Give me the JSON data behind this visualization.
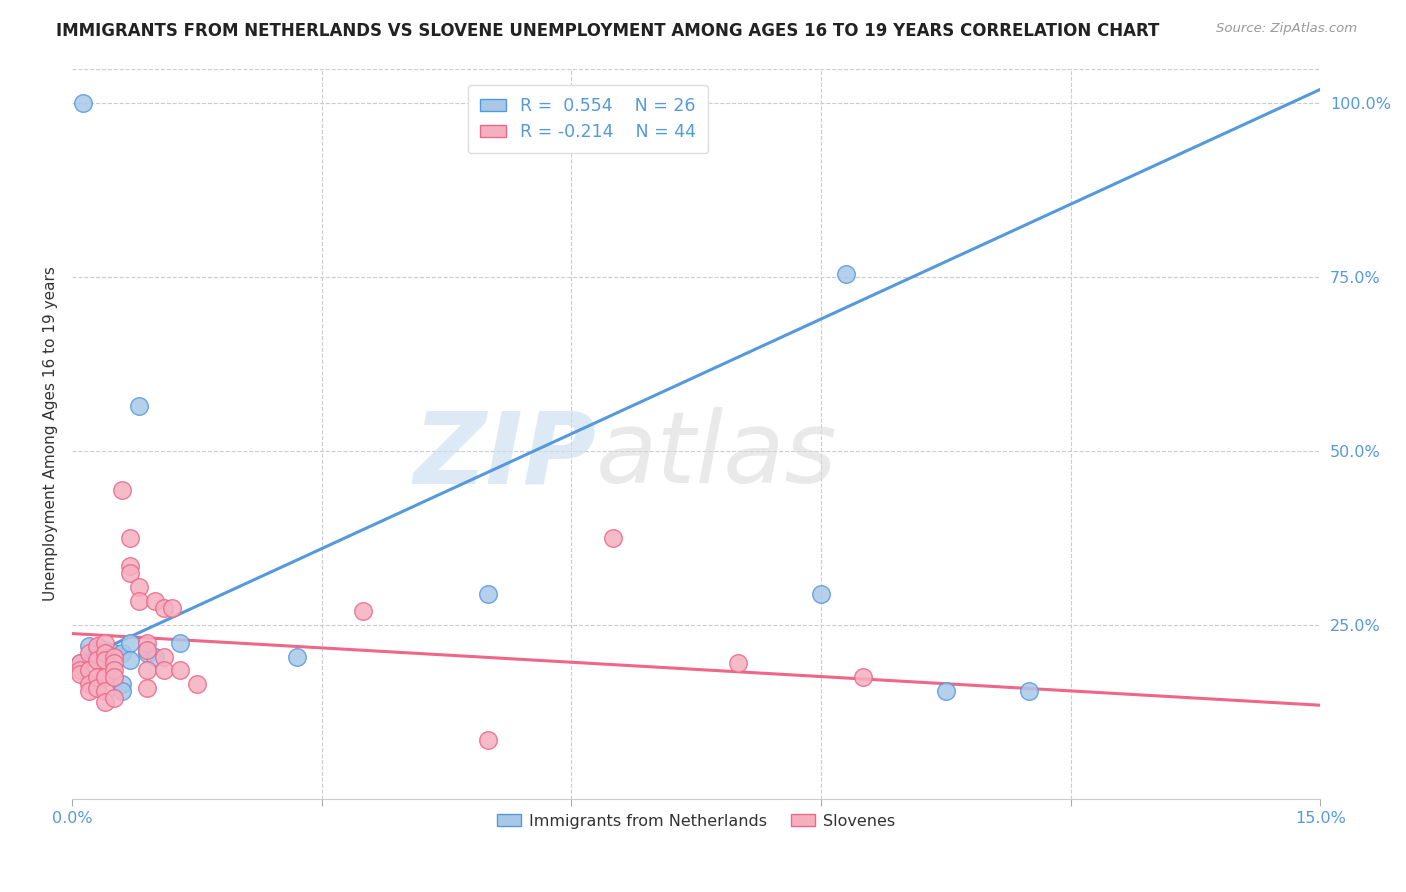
{
  "title": "IMMIGRANTS FROM NETHERLANDS VS SLOVENE UNEMPLOYMENT AMONG AGES 16 TO 19 YEARS CORRELATION CHART",
  "source": "Source: ZipAtlas.com",
  "ylabel": "Unemployment Among Ages 16 to 19 years",
  "x_min": 0.0,
  "x_max": 0.15,
  "y_min": 0.0,
  "y_max": 1.05,
  "y_ticks_right": [
    0.25,
    0.5,
    0.75,
    1.0
  ],
  "y_tick_labels_right": [
    "25.0%",
    "50.0%",
    "75.0%",
    "100.0%"
  ],
  "blue_color": "#a8c8e8",
  "pink_color": "#f5b0c0",
  "blue_line_color": "#5599dd",
  "pink_line_color": "#ee6688",
  "watermark_left": "ZIP",
  "watermark_right": "atlas",
  "blue_scatter": [
    [
      0.0013,
      1.0
    ],
    [
      0.001,
      0.195
    ],
    [
      0.002,
      0.22
    ],
    [
      0.003,
      0.215
    ],
    [
      0.003,
      0.205
    ],
    [
      0.004,
      0.215
    ],
    [
      0.004,
      0.21
    ],
    [
      0.005,
      0.21
    ],
    [
      0.005,
      0.205
    ],
    [
      0.005,
      0.195
    ],
    [
      0.006,
      0.21
    ],
    [
      0.006,
      0.165
    ],
    [
      0.006,
      0.155
    ],
    [
      0.007,
      0.225
    ],
    [
      0.007,
      0.2
    ],
    [
      0.008,
      0.565
    ],
    [
      0.009,
      0.215
    ],
    [
      0.009,
      0.21
    ],
    [
      0.01,
      0.205
    ],
    [
      0.013,
      0.225
    ],
    [
      0.027,
      0.205
    ],
    [
      0.05,
      0.295
    ],
    [
      0.09,
      0.295
    ],
    [
      0.093,
      0.755
    ],
    [
      0.105,
      0.155
    ],
    [
      0.115,
      0.155
    ]
  ],
  "pink_scatter": [
    [
      0.001,
      0.195
    ],
    [
      0.001,
      0.185
    ],
    [
      0.001,
      0.18
    ],
    [
      0.002,
      0.21
    ],
    [
      0.002,
      0.185
    ],
    [
      0.002,
      0.165
    ],
    [
      0.002,
      0.155
    ],
    [
      0.003,
      0.22
    ],
    [
      0.003,
      0.2
    ],
    [
      0.003,
      0.175
    ],
    [
      0.003,
      0.16
    ],
    [
      0.004,
      0.225
    ],
    [
      0.004,
      0.21
    ],
    [
      0.004,
      0.2
    ],
    [
      0.004,
      0.175
    ],
    [
      0.004,
      0.155
    ],
    [
      0.004,
      0.14
    ],
    [
      0.005,
      0.205
    ],
    [
      0.005,
      0.195
    ],
    [
      0.005,
      0.185
    ],
    [
      0.005,
      0.175
    ],
    [
      0.005,
      0.145
    ],
    [
      0.006,
      0.445
    ],
    [
      0.007,
      0.375
    ],
    [
      0.007,
      0.335
    ],
    [
      0.007,
      0.325
    ],
    [
      0.008,
      0.305
    ],
    [
      0.008,
      0.285
    ],
    [
      0.009,
      0.225
    ],
    [
      0.009,
      0.215
    ],
    [
      0.009,
      0.185
    ],
    [
      0.009,
      0.16
    ],
    [
      0.01,
      0.285
    ],
    [
      0.011,
      0.275
    ],
    [
      0.011,
      0.205
    ],
    [
      0.011,
      0.185
    ],
    [
      0.012,
      0.275
    ],
    [
      0.013,
      0.185
    ],
    [
      0.015,
      0.165
    ],
    [
      0.035,
      0.27
    ],
    [
      0.05,
      0.085
    ],
    [
      0.065,
      0.375
    ],
    [
      0.08,
      0.195
    ],
    [
      0.095,
      0.175
    ]
  ],
  "blue_trend_x": [
    0.0,
    0.15
  ],
  "blue_trend_y": [
    0.195,
    1.02
  ],
  "pink_trend_x": [
    0.0,
    0.15
  ],
  "pink_trend_y": [
    0.238,
    0.135
  ]
}
